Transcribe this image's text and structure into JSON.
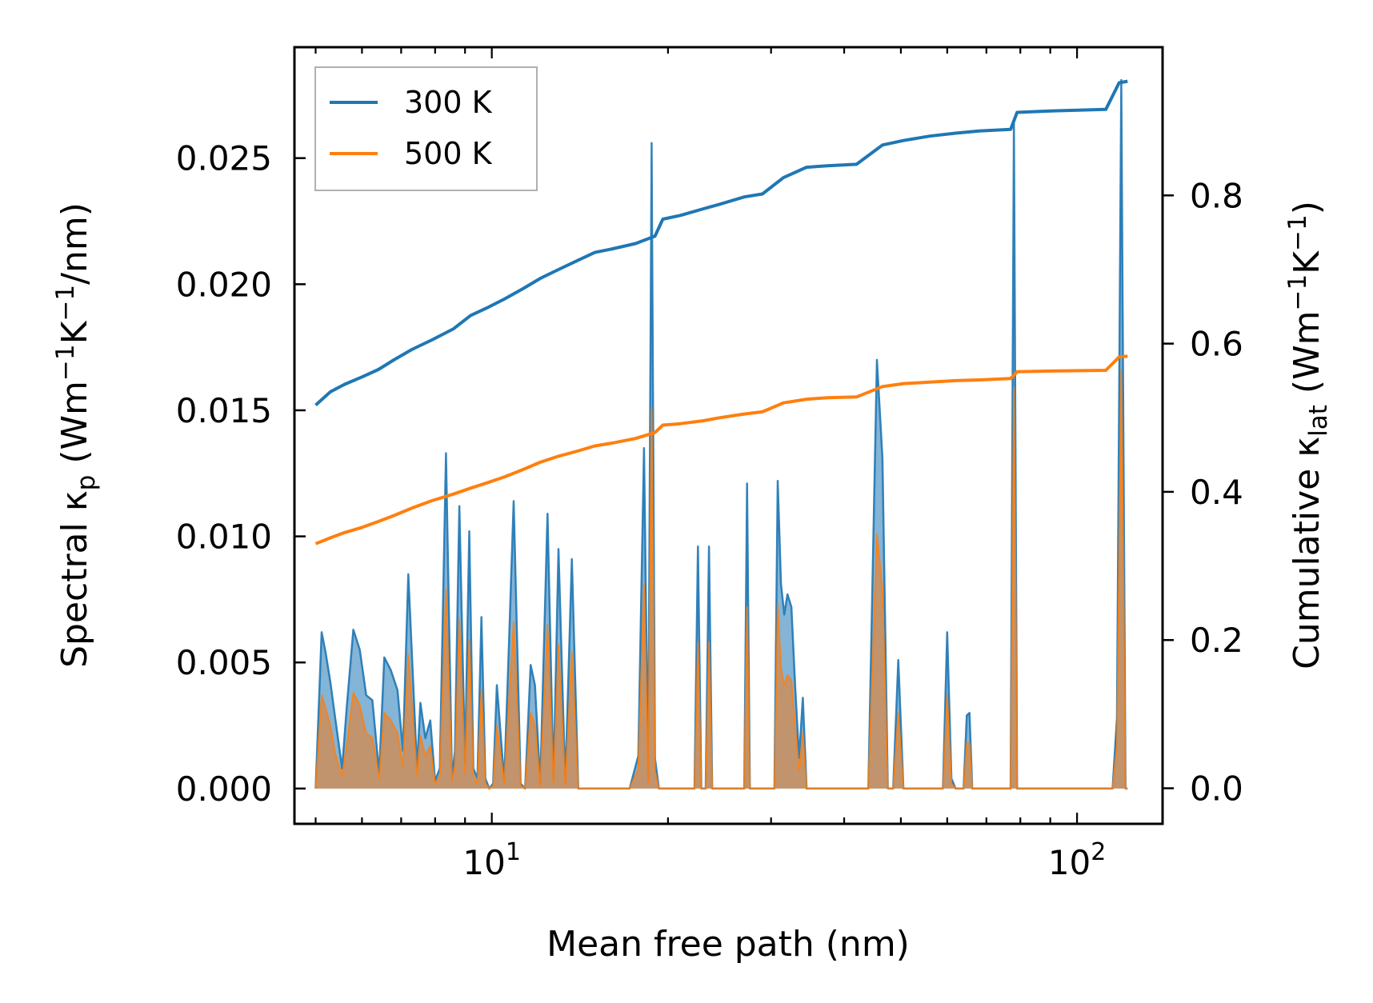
{
  "chart_data": {
    "type": "line",
    "x_scale": "log",
    "xlabel": "Mean free path (nm)",
    "ylabel_left": "Spectral κp (Wm−1K−1/nm)",
    "ylabel_right": "Cumulative κlat (Wm−1K−1)",
    "xlim": [
      4.6,
      140
    ],
    "ylim_left": [
      -0.0014,
      0.0294
    ],
    "ylim_right": [
      -0.048,
      1.0
    ],
    "left_ticks": [
      0.0,
      0.005,
      0.01,
      0.015,
      0.02,
      0.025
    ],
    "left_tick_labels": [
      "0.000",
      "0.005",
      "0.010",
      "0.015",
      "0.020",
      "0.025"
    ],
    "right_ticks": [
      0.0,
      0.2,
      0.4,
      0.6,
      0.8
    ],
    "right_tick_labels": [
      "0.0",
      "0.2",
      "0.4",
      "0.6",
      "0.8"
    ],
    "x_major_ticks": [
      10,
      100
    ],
    "x_tick_labels": [
      {
        "base": "10",
        "exp": "1"
      },
      {
        "base": "10",
        "exp": "2"
      }
    ],
    "legend": {
      "position": "top-left",
      "entries": [
        "300 K",
        "500 K"
      ]
    },
    "colors": {
      "300 K": "#1f77b4",
      "500 K": "#ff7f0e",
      "fill_300": "#1f77b4",
      "fill_500": "#d58a4a"
    },
    "cumulative_series": [
      {
        "name": "300 K",
        "axis": "right",
        "x": [
          5.0,
          5.3,
          5.6,
          6.0,
          6.4,
          6.8,
          7.3,
          7.9,
          8.6,
          9.2,
          9.8,
          10.5,
          11.3,
          12.1,
          13.0,
          14.0,
          15.0,
          16.1,
          17.6,
          19.0,
          19.6,
          21.0,
          23.0,
          24.5,
          27.0,
          29.0,
          31.5,
          34.5,
          37.5,
          42.0,
          46.5,
          50.5,
          56.0,
          62.0,
          68.0,
          77.0,
          79.0,
          90.0,
          112.0,
          118.0,
          122.0
        ],
        "y": [
          0.517,
          0.535,
          0.545,
          0.555,
          0.565,
          0.578,
          0.592,
          0.605,
          0.62,
          0.638,
          0.648,
          0.66,
          0.674,
          0.688,
          0.7,
          0.712,
          0.723,
          0.728,
          0.735,
          0.745,
          0.768,
          0.773,
          0.782,
          0.788,
          0.798,
          0.802,
          0.824,
          0.838,
          0.84,
          0.842,
          0.868,
          0.874,
          0.88,
          0.884,
          0.887,
          0.889,
          0.912,
          0.914,
          0.916,
          0.952,
          0.954
        ]
      },
      {
        "name": "500 K",
        "axis": "right",
        "x": [
          5.0,
          5.3,
          5.6,
          6.0,
          6.4,
          6.8,
          7.3,
          7.9,
          8.6,
          9.2,
          9.8,
          10.5,
          11.3,
          12.1,
          13.0,
          14.0,
          15.0,
          16.1,
          17.6,
          19.0,
          19.6,
          21.0,
          23.0,
          24.5,
          27.0,
          29.0,
          31.5,
          34.5,
          37.5,
          42.0,
          46.5,
          50.5,
          56.0,
          62.0,
          68.0,
          77.0,
          79.0,
          90.0,
          112.0,
          118.0,
          122.0
        ],
        "y": [
          0.33,
          0.338,
          0.345,
          0.352,
          0.36,
          0.368,
          0.378,
          0.388,
          0.397,
          0.405,
          0.412,
          0.42,
          0.43,
          0.44,
          0.448,
          0.455,
          0.462,
          0.466,
          0.472,
          0.48,
          0.49,
          0.492,
          0.496,
          0.5,
          0.505,
          0.508,
          0.52,
          0.525,
          0.527,
          0.528,
          0.542,
          0.546,
          0.548,
          0.55,
          0.551,
          0.553,
          0.562,
          0.563,
          0.564,
          0.582,
          0.583
        ]
      }
    ],
    "spectral_series": [
      {
        "name": "300 K",
        "axis": "left",
        "x": [
          5.0,
          5.12,
          5.2,
          5.3,
          5.4,
          5.55,
          5.65,
          5.8,
          5.95,
          6.1,
          6.25,
          6.42,
          6.55,
          6.72,
          6.9,
          7.05,
          7.2,
          7.45,
          7.55,
          7.7,
          7.85,
          8.0,
          8.15,
          8.35,
          8.55,
          8.65,
          8.8,
          9.0,
          9.15,
          9.3,
          9.45,
          9.6,
          9.75,
          9.9,
          10.05,
          10.2,
          10.5,
          10.7,
          10.9,
          11.2,
          11.4,
          11.65,
          11.85,
          12.1,
          12.45,
          12.75,
          13.0,
          13.35,
          13.7,
          14.05,
          14.3,
          14.5,
          14.75,
          15.0,
          15.25,
          15.5,
          15.8,
          16.1,
          16.4,
          17.2,
          17.8,
          18.2,
          18.5,
          18.75,
          19.0,
          19.3,
          19.55,
          19.75,
          20.0,
          20.3,
          21.5,
          22.2,
          22.5,
          22.8,
          23.2,
          23.5,
          23.8,
          24.2,
          24.5,
          25.0,
          26.5,
          27.0,
          27.3,
          27.6,
          28.0,
          28.8,
          30.0,
          30.4,
          30.8,
          31.2,
          31.6,
          32.0,
          32.5,
          33.0,
          33.5,
          34.0,
          34.5,
          35.0,
          35.5,
          36.0,
          44.0,
          45.5,
          46.5,
          47.5,
          48.5,
          49.5,
          50.5,
          51.5,
          52.5,
          58.0,
          59.0,
          60.0,
          61.0,
          62.0,
          64.0,
          64.8,
          65.5,
          66.2,
          67.0,
          68.0,
          70.0,
          75.0,
          77.0,
          78.0,
          79.0,
          80.0,
          108.0,
          112.0,
          115.0,
          117.0,
          119.0,
          121.0,
          122.0
        ],
        "y": [
          0.0,
          0.0062,
          0.0054,
          0.0042,
          0.0028,
          0.0008,
          0.0032,
          0.0063,
          0.0055,
          0.0037,
          0.0035,
          0.0006,
          0.0052,
          0.0047,
          0.0039,
          0.0015,
          0.0085,
          0.0008,
          0.0034,
          0.002,
          0.0027,
          0.0003,
          0.0008,
          0.0133,
          0.0004,
          0.0015,
          0.0112,
          0.001,
          0.0102,
          0.0008,
          0.0004,
          0.0068,
          0.0004,
          0.0,
          0.0002,
          0.0041,
          0.0003,
          0.0058,
          0.0114,
          0.0002,
          0.0,
          0.0049,
          0.0041,
          0.0002,
          0.0109,
          0.0003,
          0.0095,
          0.0002,
          0.0091,
          0.0,
          0.0,
          0.0,
          0.0,
          0.0,
          0.0,
          0.0,
          0.0,
          0.0,
          0.0,
          0.0,
          0.0013,
          0.0135,
          0.0004,
          0.0256,
          0.0012,
          0.0,
          0.0,
          0.0,
          0.0,
          0.0,
          0.0,
          0.0,
          0.0096,
          0.0,
          0.0,
          0.0096,
          0.0,
          0.0,
          0.0,
          0.0,
          0.0,
          0.0,
          0.0121,
          0.0,
          0.0,
          0.0,
          0.0,
          0.0,
          0.0122,
          0.0081,
          0.0069,
          0.0077,
          0.0072,
          0.004,
          0.0012,
          0.0036,
          0.0,
          0.0,
          0.0,
          0.0,
          0.0,
          0.017,
          0.0131,
          0.0,
          0.0,
          0.0051,
          0.0,
          0.0,
          0.0,
          0.0,
          0.0,
          0.0062,
          0.0004,
          0.0,
          0.0,
          0.0029,
          0.003,
          0.0,
          0.0,
          0.0,
          0.0,
          0.0,
          0.0,
          0.0265,
          0.0,
          0.0,
          0.0,
          0.0,
          0.0,
          0.0028,
          0.0281,
          0.0,
          0.0
        ],
        "fill_color": "#1f77b4"
      },
      {
        "name": "500 K",
        "axis": "left",
        "x": [
          5.0,
          5.12,
          5.2,
          5.3,
          5.4,
          5.55,
          5.65,
          5.8,
          5.95,
          6.1,
          6.25,
          6.42,
          6.55,
          6.72,
          6.9,
          7.05,
          7.2,
          7.45,
          7.55,
          7.7,
          7.85,
          8.0,
          8.15,
          8.35,
          8.55,
          8.65,
          8.8,
          9.0,
          9.15,
          9.3,
          9.45,
          9.6,
          9.75,
          9.9,
          10.05,
          10.2,
          10.5,
          10.7,
          10.9,
          11.2,
          11.4,
          11.65,
          11.85,
          12.1,
          12.45,
          12.75,
          13.0,
          13.35,
          13.7,
          14.05,
          14.3,
          14.5,
          14.75,
          15.0,
          15.25,
          15.5,
          15.8,
          16.1,
          16.4,
          17.2,
          17.8,
          18.2,
          18.5,
          18.75,
          19.0,
          19.3,
          19.55,
          19.75,
          20.0,
          20.3,
          21.5,
          22.2,
          22.5,
          22.8,
          23.2,
          23.5,
          23.8,
          24.2,
          24.5,
          25.0,
          26.5,
          27.0,
          27.3,
          27.6,
          28.0,
          28.8,
          30.0,
          30.4,
          30.8,
          31.2,
          31.6,
          32.0,
          32.5,
          33.0,
          33.5,
          34.0,
          34.5,
          35.0,
          35.5,
          36.0,
          44.0,
          45.5,
          46.5,
          47.5,
          48.5,
          49.5,
          50.5,
          51.5,
          52.5,
          58.0,
          59.0,
          60.0,
          61.0,
          62.0,
          64.0,
          64.8,
          65.5,
          66.2,
          67.0,
          68.0,
          70.0,
          75.0,
          77.0,
          78.0,
          79.0,
          80.0,
          108.0,
          112.0,
          115.0,
          117.0,
          119.0,
          121.0,
          122.0
        ],
        "y": [
          0.0,
          0.0037,
          0.0032,
          0.0025,
          0.0014,
          0.0005,
          0.0017,
          0.0038,
          0.0033,
          0.0022,
          0.002,
          0.0004,
          0.003,
          0.0027,
          0.0022,
          0.0009,
          0.0053,
          0.0005,
          0.0021,
          0.0013,
          0.0017,
          0.0002,
          0.0005,
          0.0079,
          0.0003,
          0.0009,
          0.0067,
          0.0006,
          0.0059,
          0.0005,
          0.0002,
          0.0039,
          0.0002,
          0.0,
          0.0001,
          0.0025,
          0.0002,
          0.0035,
          0.0066,
          0.0001,
          0.0,
          0.003,
          0.0025,
          0.0001,
          0.0065,
          0.0002,
          0.0057,
          0.0001,
          0.0054,
          0.0,
          0.0,
          0.0,
          0.0,
          0.0,
          0.0,
          0.0,
          0.0,
          0.0,
          0.0,
          0.0,
          0.0008,
          0.0081,
          0.0002,
          0.0151,
          0.0007,
          0.0,
          0.0,
          0.0,
          0.0,
          0.0,
          0.0,
          0.0,
          0.0058,
          0.0,
          0.0,
          0.0058,
          0.0,
          0.0,
          0.0,
          0.0,
          0.0,
          0.0,
          0.0072,
          0.0,
          0.0,
          0.0,
          0.0,
          0.0,
          0.0073,
          0.0048,
          0.0041,
          0.0045,
          0.0043,
          0.0024,
          0.0007,
          0.0022,
          0.0,
          0.0,
          0.0,
          0.0,
          0.0,
          0.0101,
          0.0079,
          0.0,
          0.0,
          0.003,
          0.0,
          0.0,
          0.0,
          0.0,
          0.0,
          0.0037,
          0.0002,
          0.0,
          0.0,
          0.0018,
          0.0018,
          0.0,
          0.0,
          0.0,
          0.0,
          0.0,
          0.0,
          0.0159,
          0.0,
          0.0,
          0.0,
          0.0,
          0.0,
          0.0017,
          0.0166,
          0.0,
          0.0
        ],
        "fill_color": "#d58a4a"
      }
    ]
  }
}
